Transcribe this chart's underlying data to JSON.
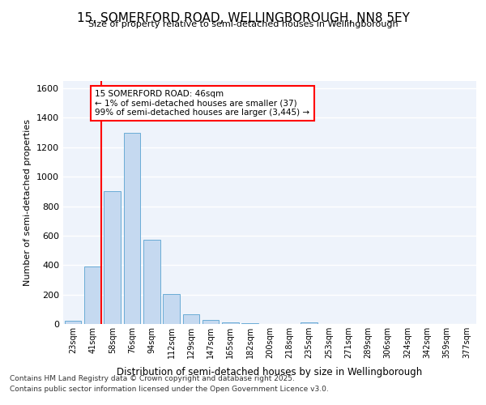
{
  "title": "15, SOMERFORD ROAD, WELLINGBOROUGH, NN8 5EY",
  "subtitle": "Size of property relative to semi-detached houses in Wellingborough",
  "xlabel": "Distribution of semi-detached houses by size in Wellingborough",
  "ylabel": "Number of semi-detached properties",
  "bar_color": "#c5d9f0",
  "bar_edge_color": "#6aacd6",
  "bg_color": "#eef3fb",
  "grid_color": "#ffffff",
  "categories": [
    "23sqm",
    "41sqm",
    "58sqm",
    "76sqm",
    "94sqm",
    "112sqm",
    "129sqm",
    "147sqm",
    "165sqm",
    "182sqm",
    "200sqm",
    "218sqm",
    "235sqm",
    "253sqm",
    "271sqm",
    "289sqm",
    "306sqm",
    "324sqm",
    "342sqm",
    "359sqm",
    "377sqm"
  ],
  "values": [
    20,
    390,
    900,
    1300,
    570,
    205,
    65,
    30,
    10,
    3,
    1,
    0,
    12,
    0,
    0,
    0,
    0,
    0,
    0,
    0,
    0
  ],
  "property_line_label": "15 SOMERFORD ROAD: 46sqm",
  "annotation_line1": "← 1% of semi-detached houses are smaller (37)",
  "annotation_line2": "99% of semi-detached houses are larger (3,445) →",
  "ylim": [
    0,
    1650
  ],
  "yticks": [
    0,
    200,
    400,
    600,
    800,
    1000,
    1200,
    1400,
    1600
  ],
  "footer_line1": "Contains HM Land Registry data © Crown copyright and database right 2025.",
  "footer_line2": "Contains public sector information licensed under the Open Government Licence v3.0."
}
